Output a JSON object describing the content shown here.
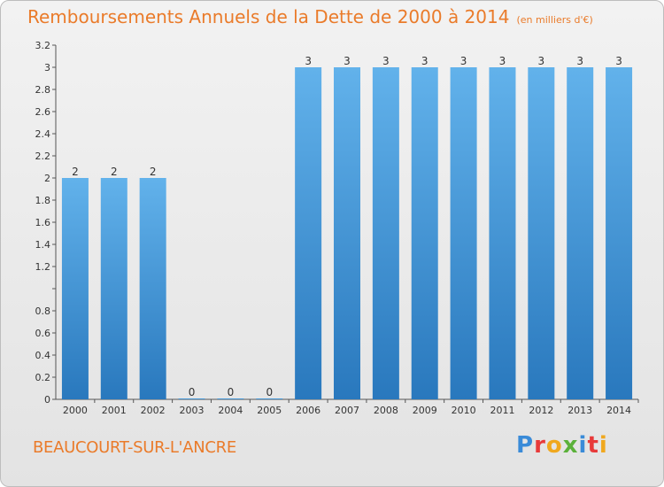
{
  "title": "Remboursements Annuels de la Dette de 2000 à 2014",
  "subtitle": "(en milliers d'€)",
  "commune": "BEAUCOURT-SUR-L'ANCRE",
  "logo": {
    "text": "Proxiti",
    "letters": [
      "P",
      "r",
      "o",
      "x",
      "i",
      "t",
      "i"
    ]
  },
  "colors": {
    "bar_top": "#62b2eb",
    "bar_bottom": "#2978bd",
    "title": "#ea7b2a",
    "label": "#333333"
  },
  "chart_data": {
    "type": "bar",
    "categories": [
      "2000",
      "2001",
      "2002",
      "2003",
      "2004",
      "2005",
      "2006",
      "2007",
      "2008",
      "2009",
      "2010",
      "2011",
      "2012",
      "2013",
      "2014"
    ],
    "values": [
      2,
      2,
      2,
      0,
      0,
      0,
      3,
      3,
      3,
      3,
      3,
      3,
      3,
      3,
      3
    ],
    "data_labels": [
      "2",
      "2",
      "2",
      "0",
      "0",
      "0",
      "3",
      "3",
      "3",
      "3",
      "3",
      "3",
      "3",
      "3",
      "3"
    ],
    "yticks": [
      0,
      0.2,
      0.4,
      0.6,
      0.8,
      1,
      1.2,
      1.4,
      1.6,
      1.8,
      2,
      2.2,
      2.4,
      2.6,
      2.8,
      3,
      3.2
    ],
    "ytick_labels": [
      "0",
      "0.2",
      "0.4",
      "0.6",
      "0.8",
      "",
      "1.2",
      "1.4",
      "1.6",
      "1.8",
      "2",
      "2.2",
      "2.4",
      "2.6",
      "2.8",
      "3",
      "3.2"
    ],
    "ylim": [
      0,
      3.2
    ],
    "xlabel": "",
    "ylabel": "",
    "grid": false,
    "legend": "none"
  }
}
